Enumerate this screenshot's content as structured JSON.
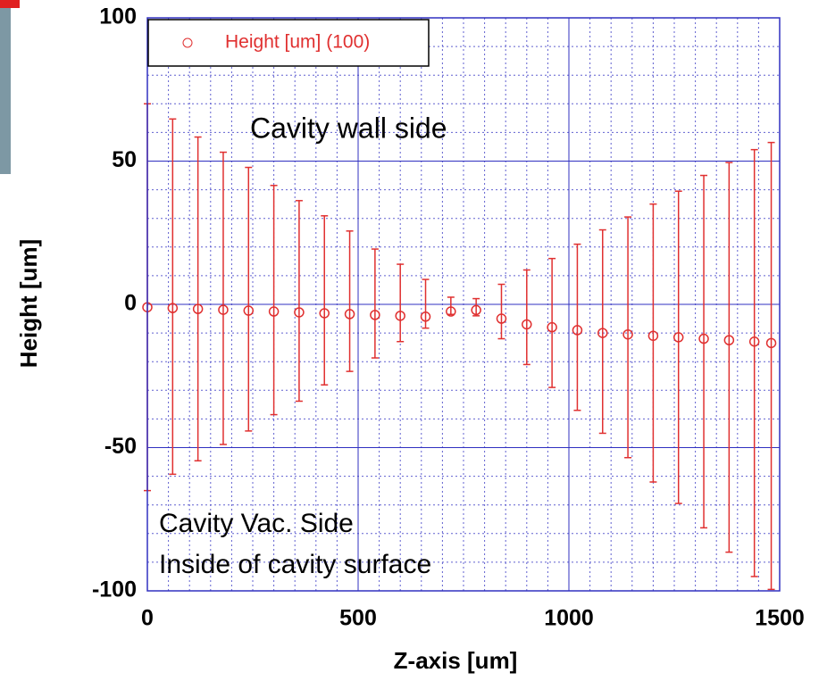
{
  "chart_data": {
    "type": "errorbar-scatter",
    "xlabel": "Z-axis [um]",
    "ylabel": "Height [um]",
    "annotations": [
      "Cavity wall side",
      "Cavity Vac. Side",
      "Inside of cavity surface"
    ],
    "xlim": [
      0,
      1500
    ],
    "ylim": [
      -100,
      100
    ],
    "xticks": [
      0,
      500,
      1000,
      1500
    ],
    "yticks": [
      -100,
      -50,
      0,
      50,
      100
    ],
    "grid": true,
    "grid_minor_step_x": 50,
    "grid_minor_step_y": 10,
    "legend": "top-left",
    "series": [
      {
        "name": "Height [um] (100)",
        "color": "#e03030",
        "x": [
          0,
          60,
          120,
          180,
          240,
          300,
          360,
          420,
          480,
          540,
          600,
          660,
          720,
          780,
          840,
          900,
          960,
          1020,
          1080,
          1140,
          1200,
          1260,
          1320,
          1380,
          1440,
          1480
        ],
        "values": [
          -1,
          -1.3,
          -1.6,
          -1.9,
          -2.2,
          -2.5,
          -2.8,
          -3.1,
          -3.4,
          -3.7,
          -4,
          -4.3,
          -2.5,
          -2,
          -5,
          -7,
          -8,
          -9,
          -10,
          -10.5,
          -11,
          -11.5,
          -12,
          -12.5,
          -13,
          -13.5
        ],
        "err_plus": [
          71,
          66,
          60,
          55,
          50,
          44,
          39,
          34,
          29,
          23,
          18,
          13,
          5,
          4,
          12,
          19,
          24,
          30,
          36,
          41,
          46,
          51,
          57,
          62,
          67,
          70
        ],
        "err_minus": [
          64,
          58,
          53,
          47,
          42,
          36,
          31,
          25,
          20,
          15,
          9,
          4,
          1,
          2,
          7,
          14,
          21,
          28,
          35,
          43,
          51,
          58,
          66,
          74,
          82,
          86
        ]
      }
    ]
  }
}
